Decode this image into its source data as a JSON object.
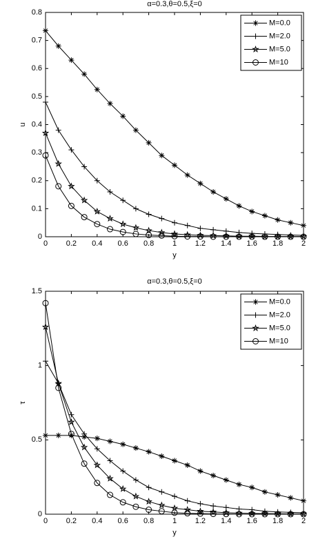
{
  "chart_data": [
    {
      "type": "line",
      "title": "α=0.3,θ=0.5,ξ=0",
      "xlabel": "y",
      "ylabel": "u",
      "x": [
        0,
        0.1,
        0.2,
        0.3,
        0.4,
        0.5,
        0.6,
        0.7,
        0.8,
        0.9,
        1,
        1.1,
        1.2,
        1.3,
        1.4,
        1.5,
        1.6,
        1.7,
        1.8,
        1.9,
        2
      ],
      "xlim": [
        0,
        2
      ],
      "xticks": [
        0,
        0.2,
        0.4,
        0.6,
        0.8,
        1,
        1.2,
        1.4,
        1.6,
        1.8,
        2
      ],
      "ylim": [
        0,
        0.8
      ],
      "yticks": [
        0,
        0.1,
        0.2,
        0.3,
        0.4,
        0.5,
        0.6,
        0.7,
        0.8
      ],
      "legend": "northeast",
      "series": [
        {
          "name": "M=0.0",
          "color": "#000000",
          "marker": "asterisk",
          "values": [
            0.735,
            0.68,
            0.63,
            0.58,
            0.525,
            0.475,
            0.43,
            0.38,
            0.335,
            0.29,
            0.255,
            0.22,
            0.19,
            0.16,
            0.135,
            0.11,
            0.09,
            0.075,
            0.06,
            0.05,
            0.04
          ]
        },
        {
          "name": "M=2.0",
          "color": "#000000",
          "marker": "plus",
          "values": [
            0.48,
            0.38,
            0.31,
            0.25,
            0.2,
            0.16,
            0.13,
            0.1,
            0.08,
            0.065,
            0.05,
            0.04,
            0.03,
            0.025,
            0.02,
            0.015,
            0.012,
            0.01,
            0.008,
            0.006,
            0.005
          ]
        },
        {
          "name": "M=5.0",
          "color": "#000000",
          "marker": "star",
          "values": [
            0.37,
            0.26,
            0.18,
            0.13,
            0.09,
            0.065,
            0.045,
            0.032,
            0.022,
            0.015,
            0.01,
            0.007,
            0.005,
            0.004,
            0.003,
            0.002,
            0.002,
            0.001,
            0.001,
            0.001,
            0.001
          ]
        },
        {
          "name": "M=10",
          "color": "#000000",
          "marker": "circle",
          "values": [
            0.29,
            0.18,
            0.11,
            0.07,
            0.045,
            0.027,
            0.017,
            0.01,
            0.006,
            0.004,
            0.002,
            0.001,
            0.001,
            0,
            0,
            0,
            0,
            0,
            0,
            0,
            0
          ]
        }
      ]
    },
    {
      "type": "line",
      "title": "α=0.3,θ=0.5,ξ=0",
      "xlabel": "y",
      "ylabel": "τ",
      "x": [
        0,
        0.1,
        0.2,
        0.3,
        0.4,
        0.5,
        0.6,
        0.7,
        0.8,
        0.9,
        1,
        1.1,
        1.2,
        1.3,
        1.4,
        1.5,
        1.6,
        1.7,
        1.8,
        1.9,
        2
      ],
      "xlim": [
        0,
        2
      ],
      "xticks": [
        0,
        0.2,
        0.4,
        0.6,
        0.8,
        1,
        1.2,
        1.4,
        1.6,
        1.8,
        2
      ],
      "ylim": [
        0,
        1.5
      ],
      "yticks": [
        0,
        0.5,
        1,
        1.5
      ],
      "legend": "northeast",
      "series": [
        {
          "name": "M=0.0",
          "color": "#000000",
          "marker": "asterisk",
          "values": [
            0.53,
            0.53,
            0.53,
            0.52,
            0.51,
            0.49,
            0.47,
            0.445,
            0.42,
            0.39,
            0.36,
            0.33,
            0.29,
            0.26,
            0.23,
            0.2,
            0.18,
            0.15,
            0.13,
            0.11,
            0.09
          ]
        },
        {
          "name": "M=2.0",
          "color": "#000000",
          "marker": "plus",
          "values": [
            1.03,
            0.88,
            0.67,
            0.54,
            0.44,
            0.36,
            0.29,
            0.23,
            0.18,
            0.15,
            0.12,
            0.09,
            0.07,
            0.055,
            0.045,
            0.035,
            0.03,
            0.02,
            0.015,
            0.012,
            0.01
          ]
        },
        {
          "name": "M=5.0",
          "color": "#000000",
          "marker": "star",
          "values": [
            1.26,
            0.88,
            0.62,
            0.45,
            0.33,
            0.24,
            0.17,
            0.12,
            0.085,
            0.06,
            0.04,
            0.03,
            0.02,
            0.015,
            0.01,
            0.007,
            0.005,
            0.004,
            0.003,
            0.002,
            0.002
          ]
        },
        {
          "name": "M=10",
          "color": "#000000",
          "marker": "circle",
          "values": [
            1.42,
            0.85,
            0.54,
            0.34,
            0.21,
            0.13,
            0.08,
            0.05,
            0.03,
            0.02,
            0.01,
            0.006,
            0.004,
            0.002,
            0.001,
            0,
            0,
            0,
            0,
            0,
            0
          ]
        }
      ]
    }
  ]
}
